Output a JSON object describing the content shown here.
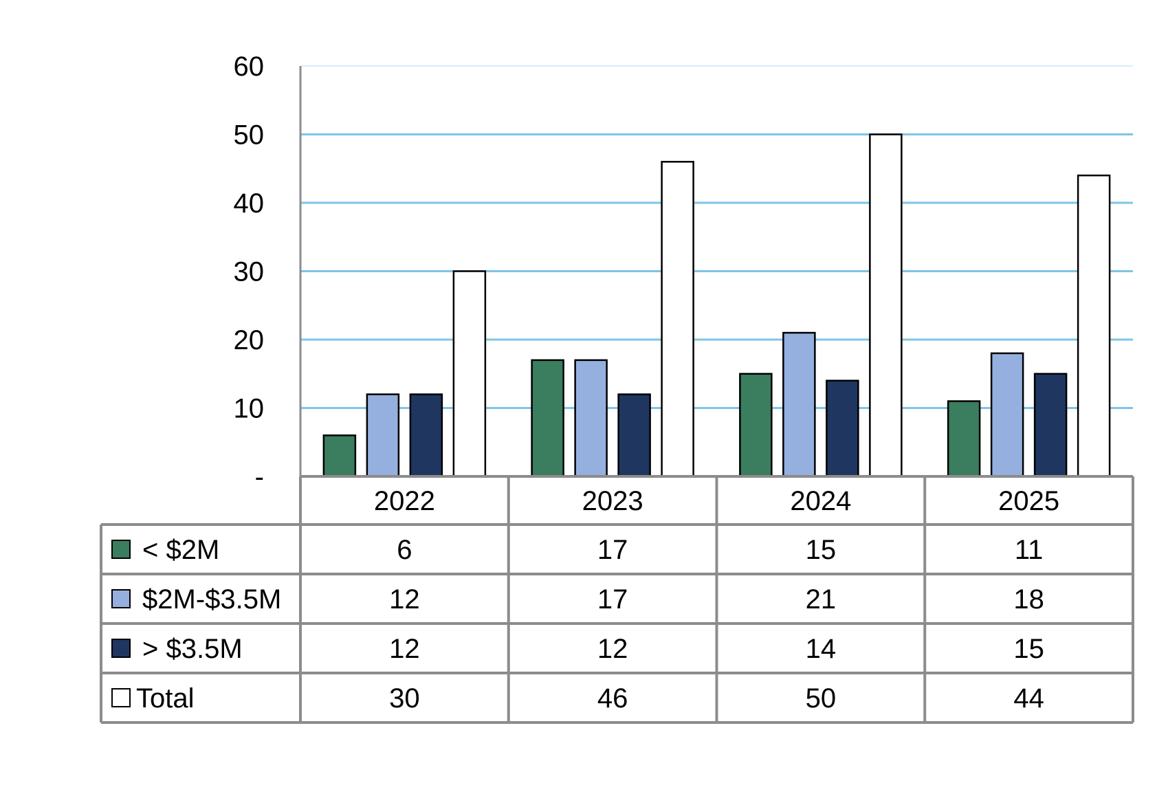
{
  "chart_data": {
    "type": "bar",
    "categories": [
      "2022",
      "2023",
      "2024",
      "2025"
    ],
    "series": [
      {
        "name": "< $2M",
        "color": "#3a7d5f",
        "values": [
          6,
          17,
          15,
          11
        ]
      },
      {
        "name": "$2M-$3.5M",
        "color": "#95b0df",
        "values": [
          12,
          17,
          21,
          18
        ]
      },
      {
        "name": "> $3.5M",
        "color": "#1f3660",
        "values": [
          12,
          12,
          14,
          15
        ]
      },
      {
        "name": "Total",
        "color": "#ffffff",
        "values": [
          30,
          46,
          50,
          44
        ]
      }
    ],
    "ylim": [
      0,
      60
    ],
    "yticks": [
      "-",
      "10",
      "20",
      "30",
      "40",
      "50",
      "60"
    ],
    "grid": true,
    "gridline_color": "#7fc4e6",
    "legend": "data-table",
    "data_table": {
      "rows": [
        {
          "label": "< $2M",
          "values": [
            "6",
            "17",
            "15",
            "11"
          ]
        },
        {
          "label": "$2M-$3.5M",
          "values": [
            "12",
            "17",
            "21",
            "18"
          ]
        },
        {
          "label": "> $3.5M",
          "values": [
            "12",
            "12",
            "14",
            "15"
          ]
        },
        {
          "label": "Total",
          "values": [
            "30",
            "46",
            "50",
            "44"
          ]
        }
      ]
    }
  }
}
